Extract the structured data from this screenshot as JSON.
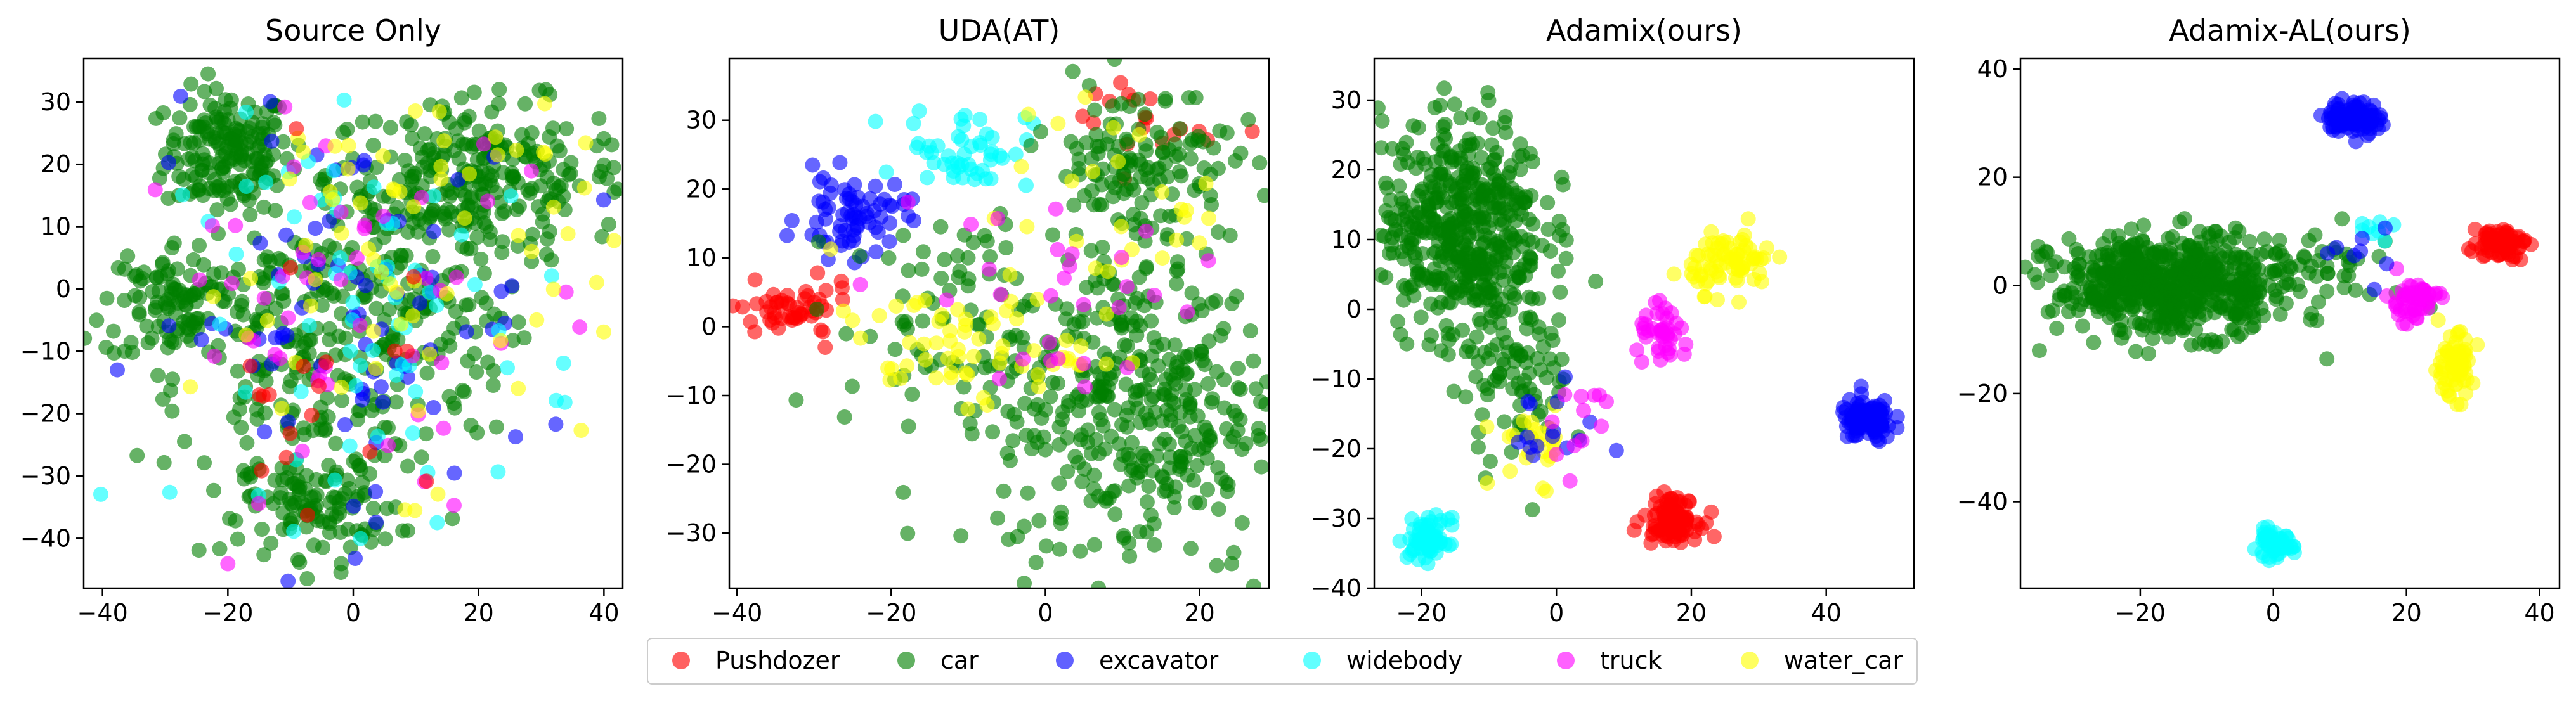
{
  "chart_data": [
    {
      "type": "scatter",
      "title": "Source Only",
      "xlabel": "",
      "ylabel": "",
      "xlim": [
        -43,
        43
      ],
      "ylim": [
        -48,
        37
      ],
      "xticks": [
        -40,
        -20,
        0,
        20,
        40
      ],
      "yticks": [
        -40,
        -30,
        -20,
        -10,
        0,
        10,
        20,
        30
      ],
      "xtick_labels": [
        "−40",
        "−20",
        "0",
        "20",
        "40"
      ],
      "ytick_labels": [
        "−40",
        "−30",
        "−20",
        "−10",
        "0",
        "10",
        "20",
        "30"
      ],
      "grid": false,
      "clusters": [
        {
          "series": "car",
          "n": 170,
          "cx": -20,
          "cy": 22,
          "sx": 5,
          "sy": 5
        },
        {
          "series": "car",
          "n": 240,
          "cx": 20,
          "cy": 18,
          "sx": 12,
          "sy": 6
        },
        {
          "series": "car",
          "n": 200,
          "cx": -8,
          "cy": -15,
          "sx": 10,
          "sy": 13
        },
        {
          "series": "car",
          "n": 110,
          "cx": -28,
          "cy": -2,
          "sx": 6,
          "sy": 5
        },
        {
          "series": "car",
          "n": 150,
          "cx": 8,
          "cy": 0,
          "sx": 10,
          "sy": 12
        },
        {
          "series": "car",
          "n": 90,
          "cx": -5,
          "cy": -35,
          "sx": 6,
          "sy": 4
        },
        {
          "series": "excavator",
          "n": 80,
          "cx": -2,
          "cy": -5,
          "sx": 16,
          "sy": 16
        },
        {
          "series": "widebody",
          "n": 70,
          "cx": 5,
          "cy": -5,
          "sx": 16,
          "sy": 16
        },
        {
          "series": "truck",
          "n": 55,
          "cx": 0,
          "cy": -5,
          "sx": 18,
          "sy": 18
        },
        {
          "series": "water_car",
          "n": 75,
          "cx": 10,
          "cy": 5,
          "sx": 18,
          "sy": 17
        },
        {
          "series": "Pushdozer",
          "n": 20,
          "cx": -5,
          "cy": -15,
          "sx": 10,
          "sy": 15
        }
      ]
    },
    {
      "type": "scatter",
      "title": "UDA(AT)",
      "xlabel": "",
      "ylabel": "",
      "xlim": [
        -41,
        29
      ],
      "ylim": [
        -38,
        39
      ],
      "xticks": [
        -40,
        -20,
        0,
        20
      ],
      "yticks": [
        -30,
        -20,
        -10,
        0,
        10,
        20,
        30
      ],
      "xtick_labels": [
        "−40",
        "−20",
        "0",
        "20"
      ],
      "ytick_labels": [
        "−30",
        "−20",
        "−10",
        "0",
        "10",
        "20",
        "30"
      ],
      "grid": false,
      "clusters": [
        {
          "series": "Pushdozer",
          "n": 55,
          "cx": -33,
          "cy": 2,
          "sx": 4,
          "sy": 2
        },
        {
          "series": "Pushdozer",
          "n": 20,
          "cx": 12,
          "cy": 30,
          "sx": 5,
          "sy": 4
        },
        {
          "series": "excavator",
          "n": 70,
          "cx": -25,
          "cy": 16,
          "sx": 3.5,
          "sy": 3
        },
        {
          "series": "widebody",
          "n": 50,
          "cx": -10,
          "cy": 26,
          "sx": 4,
          "sy": 3
        },
        {
          "series": "car",
          "n": 380,
          "cx": 12,
          "cy": -12,
          "sx": 9,
          "sy": 12
        },
        {
          "series": "car",
          "n": 130,
          "cx": 12,
          "cy": 24,
          "sx": 6,
          "sy": 6
        },
        {
          "series": "car",
          "n": 90,
          "cx": -10,
          "cy": 0,
          "sx": 8,
          "sy": 8
        },
        {
          "series": "water_car",
          "n": 60,
          "cx": -12,
          "cy": -3,
          "sx": 8,
          "sy": 4
        },
        {
          "series": "water_car",
          "n": 30,
          "cx": 10,
          "cy": 15,
          "sx": 8,
          "sy": 8
        },
        {
          "series": "truck",
          "n": 30,
          "cx": 0,
          "cy": 5,
          "sx": 12,
          "sy": 10
        }
      ]
    },
    {
      "type": "scatter",
      "title": "Adamix(ours)",
      "xlabel": "",
      "ylabel": "",
      "xlim": [
        -27,
        53
      ],
      "ylim": [
        -40,
        36
      ],
      "xticks": [
        -20,
        0,
        20,
        40
      ],
      "yticks": [
        -40,
        -30,
        -20,
        -10,
        0,
        10,
        20,
        30
      ],
      "xtick_labels": [
        "−20",
        "0",
        "20",
        "40"
      ],
      "ytick_labels": [
        "−40",
        "−30",
        "−20",
        "−10",
        "0",
        "10",
        "20",
        "30"
      ],
      "grid": false,
      "clusters": [
        {
          "series": "car",
          "n": 480,
          "cx": -14,
          "cy": 12,
          "sx": 6,
          "sy": 8
        },
        {
          "series": "car",
          "n": 80,
          "cx": -6,
          "cy": -10,
          "sx": 4,
          "sy": 6
        },
        {
          "series": "water_car",
          "n": 75,
          "cx": 26,
          "cy": 7,
          "sx": 3,
          "sy": 2.2
        },
        {
          "series": "truck",
          "n": 40,
          "cx": 16,
          "cy": -4,
          "sx": 2,
          "sy": 2
        },
        {
          "series": "excavator",
          "n": 110,
          "cx": 46,
          "cy": -16,
          "sx": 2,
          "sy": 1.5
        },
        {
          "series": "Pushdozer",
          "n": 100,
          "cx": 17,
          "cy": -30,
          "sx": 2,
          "sy": 1.5
        },
        {
          "series": "widebody",
          "n": 70,
          "cx": -19,
          "cy": -33,
          "sx": 1.5,
          "sy": 1.5
        },
        {
          "series": "water_car",
          "n": 25,
          "cx": -3,
          "cy": -19,
          "sx": 3,
          "sy": 3
        },
        {
          "series": "excavator",
          "n": 15,
          "cx": -2,
          "cy": -18,
          "sx": 4,
          "sy": 3
        },
        {
          "series": "truck",
          "n": 12,
          "cx": 3,
          "cy": -15,
          "sx": 4,
          "sy": 4
        }
      ]
    },
    {
      "type": "scatter",
      "title": "Adamix-AL(ours)",
      "xlabel": "",
      "ylabel": "",
      "xlim": [
        -38,
        43
      ],
      "ylim": [
        -56,
        42
      ],
      "xticks": [
        -20,
        0,
        20,
        40
      ],
      "yticks": [
        -40,
        -20,
        0,
        20,
        40
      ],
      "xtick_labels": [
        "−20",
        "0",
        "20",
        "40"
      ],
      "ytick_labels": [
        "−40",
        "−20",
        "0",
        "20",
        "40"
      ],
      "grid": false,
      "clusters": [
        {
          "series": "car",
          "n": 620,
          "cx": -15,
          "cy": 0,
          "sx": 9,
          "sy": 4.5
        },
        {
          "series": "car",
          "n": 25,
          "cx": 10,
          "cy": 5,
          "sx": 4,
          "sy": 4
        },
        {
          "series": "excavator",
          "n": 110,
          "cx": 12,
          "cy": 31,
          "sx": 2,
          "sy": 1.5
        },
        {
          "series": "Pushdozer",
          "n": 70,
          "cx": 34,
          "cy": 8,
          "sx": 2,
          "sy": 1.5
        },
        {
          "series": "truck",
          "n": 50,
          "cx": 21,
          "cy": -3,
          "sx": 2,
          "sy": 2
        },
        {
          "series": "water_car",
          "n": 65,
          "cx": 27,
          "cy": -15,
          "sx": 1.5,
          "sy": 3
        },
        {
          "series": "widebody",
          "n": 55,
          "cx": 0,
          "cy": -48,
          "sx": 1.5,
          "sy": 1.2
        },
        {
          "series": "widebody",
          "n": 8,
          "cx": 14,
          "cy": 10,
          "sx": 2,
          "sy": 1
        },
        {
          "series": "excavator",
          "n": 8,
          "cx": 12,
          "cy": 7,
          "sx": 3,
          "sy": 3
        }
      ]
    }
  ],
  "legend": {
    "position": "bottom-center",
    "entries": [
      {
        "name": "Pushdozer",
        "color": "#ff0000"
      },
      {
        "name": "car",
        "color": "#007f00"
      },
      {
        "name": "excavator",
        "color": "#0000ff"
      },
      {
        "name": "widebody",
        "color": "#00ffff"
      },
      {
        "name": "truck",
        "color": "#ff00ff"
      },
      {
        "name": "water_car",
        "color": "#ffff00"
      }
    ]
  }
}
